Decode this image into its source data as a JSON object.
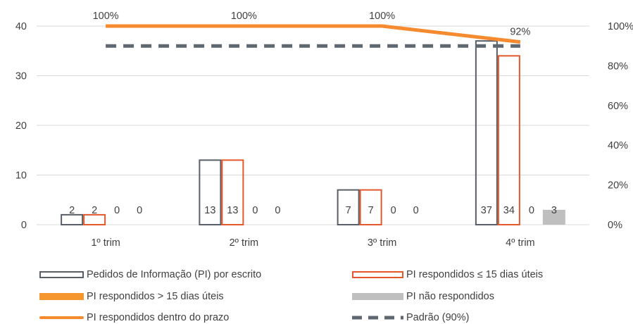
{
  "chart_data": {
    "type": "bar",
    "categories": [
      "1º trim",
      "2º trim",
      "3º trim",
      "4º trim"
    ],
    "left_axis": {
      "min": 0,
      "max": 40,
      "ticks": [
        0,
        10,
        20,
        30,
        40
      ]
    },
    "right_axis": {
      "min": 0,
      "max": 1,
      "ticks": [
        "0%",
        "20%",
        "40%",
        "60%",
        "80%",
        "100%"
      ]
    },
    "series": [
      {
        "name": "Pedidos de Informação (PI) por escrito",
        "kind": "bar",
        "axis": "left",
        "style": "outline",
        "color": "#595f66",
        "values": [
          2,
          13,
          7,
          37
        ],
        "labels": [
          "2",
          "13",
          "7",
          "37"
        ]
      },
      {
        "name": "PI respondidos ≤ 15 dias úteis",
        "kind": "bar",
        "axis": "left",
        "style": "outline",
        "color": "#e4582b",
        "values": [
          2,
          13,
          7,
          34
        ],
        "labels": [
          "2",
          "13",
          "7",
          "34"
        ]
      },
      {
        "name": "PI respondidos > 15 dias úteis",
        "kind": "bar",
        "axis": "left",
        "style": "fill",
        "color": "#f5962f",
        "values": [
          0,
          0,
          0,
          0
        ],
        "labels": [
          "0",
          "0",
          "0",
          "0"
        ]
      },
      {
        "name": "PI não respondidos",
        "kind": "bar",
        "axis": "left",
        "style": "fill",
        "color": "#bfbfbf",
        "values": [
          0,
          0,
          0,
          3
        ],
        "labels": [
          "0",
          "0",
          "0",
          "3"
        ]
      },
      {
        "name": "PI respondidos dentro do prazo",
        "kind": "line",
        "axis": "right",
        "color": "#f58a2e",
        "values": [
          1.0,
          1.0,
          1.0,
          0.92
        ],
        "labels": [
          "100%",
          "100%",
          "100%",
          "92%"
        ]
      },
      {
        "name": "Padrão (90%)",
        "kind": "line",
        "axis": "right",
        "style": "dashed",
        "color": "#5f6770",
        "values": [
          0.9,
          0.9,
          0.9,
          0.9
        ]
      }
    ],
    "grid": true,
    "legend_position": "bottom"
  },
  "legend": [
    {
      "label": "Pedidos de Informação (PI) por escrito",
      "symbol": "outline",
      "color": "#595f66"
    },
    {
      "label": "PI respondidos ≤ 15 dias úteis",
      "symbol": "outline",
      "color": "#e4582b"
    },
    {
      "label": "PI respondidos > 15 dias úteis",
      "symbol": "fill",
      "color": "#f5962f"
    },
    {
      "label": "PI não respondidos",
      "symbol": "fill",
      "color": "#bfbfbf"
    },
    {
      "label": "PI respondidos dentro do prazo",
      "symbol": "line",
      "color": "#f58a2e"
    },
    {
      "label": "Padrão (90%)",
      "symbol": "dashed",
      "color": "#5f6770"
    }
  ]
}
